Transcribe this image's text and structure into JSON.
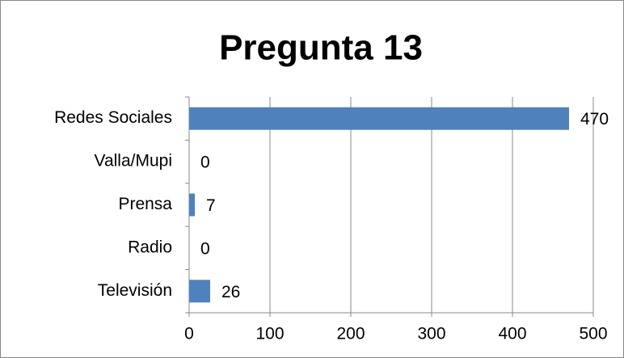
{
  "chart_data": {
    "type": "bar",
    "orientation": "horizontal",
    "title": "Pregunta 13",
    "categories": [
      "Redes Sociales",
      "Valla/Mupi",
      "Prensa",
      "Radio",
      "Televisión"
    ],
    "values": [
      470,
      0,
      7,
      0,
      26
    ],
    "color": "#4f81bd",
    "xlim": [
      0,
      500
    ],
    "xticks": [
      0,
      100,
      200,
      300,
      400,
      500
    ],
    "grid": true
  }
}
